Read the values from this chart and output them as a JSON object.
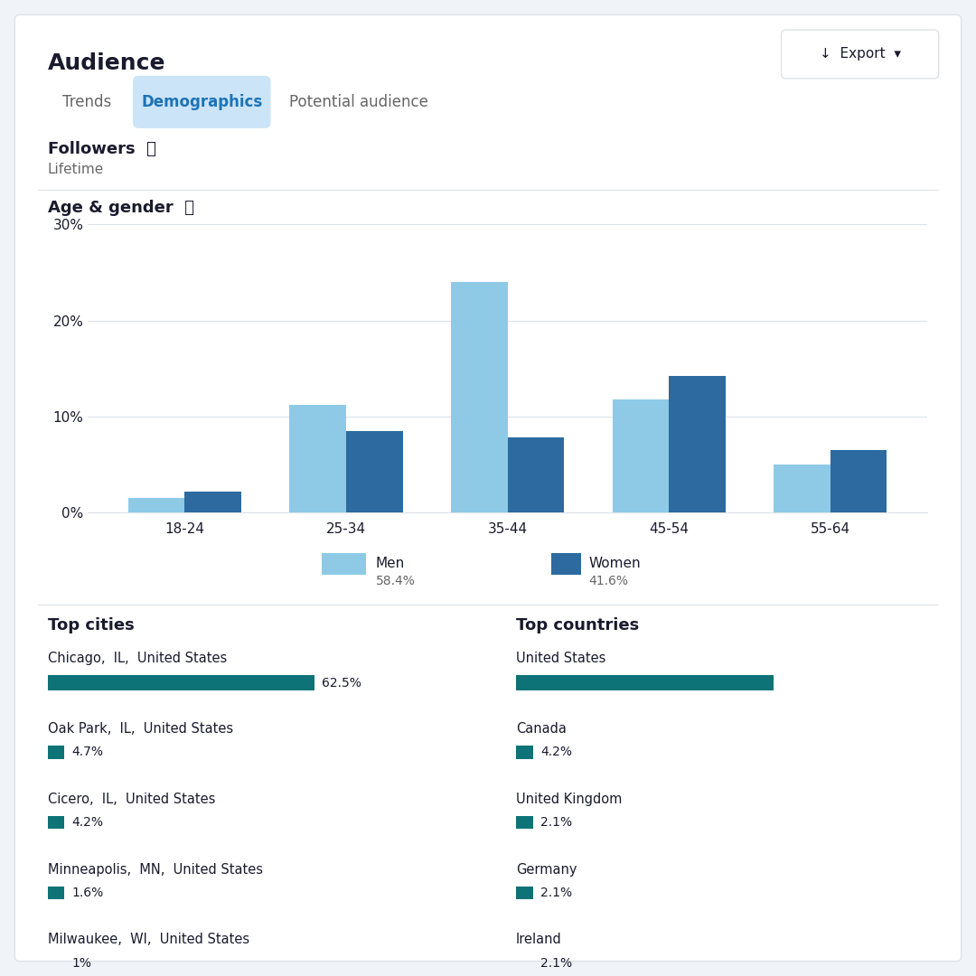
{
  "title": "Audience",
  "tabs": [
    "Trends",
    "Demographics",
    "Potential audience"
  ],
  "active_tab": "Demographics",
  "section1_title": "Followers",
  "section1_sub": "Lifetime",
  "section2_title": "Age & gender",
  "age_groups": [
    "18-24",
    "25-34",
    "35-44",
    "45-54",
    "55-64"
  ],
  "men_values": [
    1.5,
    11.2,
    24.0,
    11.8,
    5.0
  ],
  "women_values": [
    2.2,
    8.5,
    7.8,
    14.2,
    6.5
  ],
  "men_color": "#8ecae6",
  "women_color": "#2d6a9f",
  "men_label": "Men",
  "men_pct": "58.4%",
  "women_label": "Women",
  "women_pct": "41.6%",
  "yticks": [
    0,
    10,
    20,
    30
  ],
  "ylim": [
    0,
    30
  ],
  "top_cities_title": "Top cities",
  "top_countries_title": "Top countries",
  "cities": [
    {
      "name": "Chicago,  IL,  United States",
      "pct": 62.5,
      "pct_label": "62.5%"
    },
    {
      "name": "Oak Park,  IL,  United States",
      "pct": 4.7,
      "pct_label": "4.7%"
    },
    {
      "name": "Cicero,  IL,  United States",
      "pct": 4.2,
      "pct_label": "4.2%"
    },
    {
      "name": "Minneapolis,  MN,  United States",
      "pct": 1.6,
      "pct_label": "1.6%"
    },
    {
      "name": "Milwaukee,  WI,  United States",
      "pct": 1.0,
      "pct_label": "1%"
    }
  ],
  "countries": [
    {
      "name": "United States",
      "pct": 62.5,
      "pct_label": ""
    },
    {
      "name": "Canada",
      "pct": 4.2,
      "pct_label": "4.2%"
    },
    {
      "name": "United Kingdom",
      "pct": 2.1,
      "pct_label": "2.1%"
    },
    {
      "name": "Germany",
      "pct": 2.1,
      "pct_label": "2.1%"
    },
    {
      "name": "Ireland",
      "pct": 2.1,
      "pct_label": "2.1%"
    }
  ],
  "teal_color": "#0d7377",
  "bg_color": "#f0f4f8",
  "panel_color": "#ffffff",
  "text_color": "#1a1a2e",
  "gray_text": "#666666",
  "border_color": "#dde3e8",
  "active_tab_bg": "#cce4f7",
  "active_tab_color": "#1b74b8"
}
